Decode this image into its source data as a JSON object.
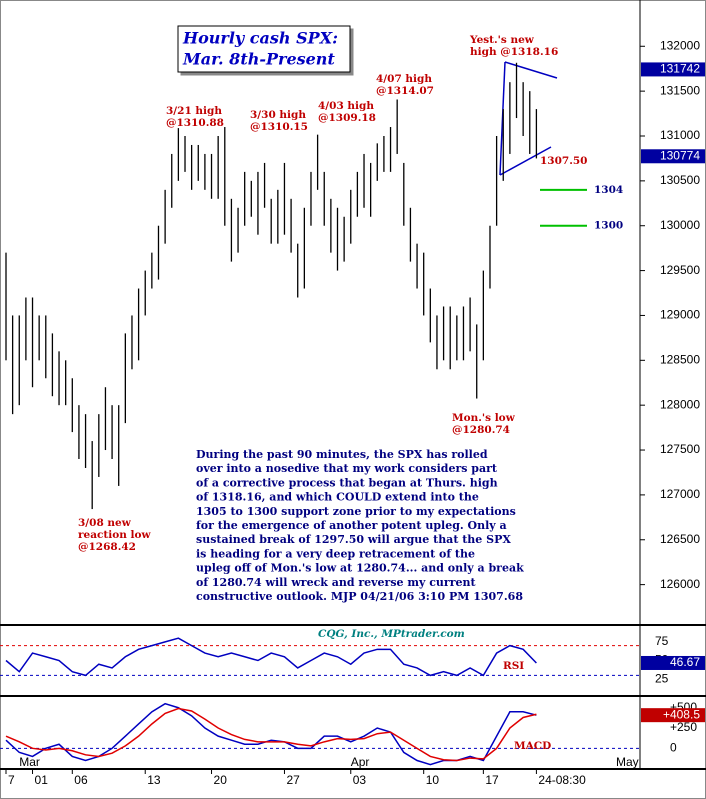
{
  "chart_data": [
    {
      "type": "range-bar",
      "title": [
        "Hourly cash SPX:",
        "Mar. 8th-Present"
      ],
      "categories": [
        "7",
        null,
        null,
        null,
        "01",
        null,
        null,
        null,
        null,
        null,
        "06",
        null,
        null,
        null,
        null,
        null,
        null,
        null,
        null,
        null,
        null,
        "13",
        null,
        null,
        null,
        null,
        null,
        null,
        null,
        null,
        null,
        "20",
        null,
        null,
        null,
        null,
        null,
        null,
        null,
        null,
        null,
        null,
        "27",
        null,
        null,
        null,
        null,
        null,
        null,
        null,
        null,
        null,
        "03",
        null,
        null,
        null,
        null,
        null,
        null,
        null,
        null,
        null,
        null,
        "10",
        null,
        null,
        null,
        null,
        null,
        null,
        null,
        null,
        "17",
        null,
        null,
        null,
        null,
        null,
        null,
        null,
        "24-08:30",
        null,
        null,
        null,
        null,
        null,
        null,
        null,
        null,
        null,
        null,
        null,
        null,
        null,
        null
      ],
      "months": [
        null,
        null,
        "Mar",
        null,
        null,
        null,
        null,
        null,
        null,
        null,
        null,
        null,
        null,
        null,
        null,
        null,
        null,
        null,
        null,
        null,
        null,
        null,
        null,
        null,
        null,
        null,
        null,
        null,
        null,
        null,
        null,
        null,
        null,
        null,
        null,
        null,
        null,
        null,
        null,
        null,
        null,
        null,
        null,
        null,
        null,
        null,
        null,
        null,
        null,
        null,
        null,
        null,
        "Apr",
        null,
        null,
        null,
        null,
        null,
        null,
        null,
        null,
        null,
        null,
        null,
        null,
        null,
        null,
        null,
        null,
        null,
        null,
        null,
        null,
        null,
        null,
        null,
        null,
        null,
        null,
        null,
        null,
        null,
        null,
        null,
        null,
        null,
        null,
        null,
        null,
        null,
        null,
        null,
        "May",
        null,
        null
      ],
      "series": [
        {
          "name": "High",
          "color": "#000000",
          "values": [
            129700,
            129000,
            129000,
            129200,
            129200,
            129000,
            129000,
            128800,
            128600,
            128500,
            128300,
            128000,
            127900,
            127600,
            127900,
            128200,
            128000,
            128000,
            128800,
            129000,
            129300,
            129500,
            129700,
            130000,
            130400,
            130800,
            131088,
            131000,
            130900,
            130900,
            130800,
            130800,
            131000,
            131100,
            130300,
            130200,
            130600,
            130500,
            130600,
            130700,
            130300,
            130400,
            130700,
            130300,
            129800,
            130200,
            130600,
            131015,
            130600,
            130300,
            130200,
            130100,
            130400,
            130600,
            130800,
            130700,
            130918,
            131000,
            131100,
            131407,
            130700,
            130200,
            129800,
            129700,
            129300,
            129000,
            129100,
            129100,
            129000,
            129100,
            129200,
            128900,
            129500,
            130000,
            131000,
            131300,
            131600,
            131816,
            131600,
            131500,
            131300,
            null,
            null,
            null,
            null,
            null,
            null,
            null,
            null,
            null,
            null,
            null,
            null,
            null,
            null
          ]
        },
        {
          "name": "Low",
          "color": "#000000",
          "values": [
            128500,
            127900,
            128000,
            128500,
            128200,
            128500,
            128300,
            128100,
            128000,
            128000,
            127700,
            127400,
            127300,
            126842,
            127200,
            127500,
            127400,
            127100,
            127800,
            128400,
            128500,
            129000,
            129300,
            129400,
            129800,
            130200,
            130500,
            130600,
            130400,
            130500,
            130400,
            130300,
            130300,
            130000,
            129600,
            129700,
            130000,
            130100,
            129900,
            130200,
            129800,
            129800,
            129900,
            129700,
            129200,
            129300,
            130000,
            130400,
            130000,
            129700,
            129500,
            129600,
            129800,
            130100,
            130200,
            130100,
            130500,
            130600,
            130600,
            130800,
            130000,
            129600,
            129300,
            129000,
            128700,
            128400,
            128500,
            128400,
            128500,
            128500,
            128600,
            128074,
            128500,
            129300,
            130000,
            130500,
            130800,
            131200,
            131000,
            130800,
            130750,
            null,
            null,
            null,
            null,
            null,
            null,
            null,
            null,
            null,
            null,
            null,
            null,
            null,
            null
          ]
        }
      ],
      "ylim": [
        125550,
        132460
      ],
      "yticks": [
        126000,
        126500,
        127000,
        127500,
        128000,
        128500,
        129000,
        129500,
        130000,
        130500,
        131000,
        131500,
        132000
      ],
      "price_tags": [
        131742,
        130774
      ],
      "support_levels": [
        {
          "value": 130400,
          "label": "1304",
          "color": "#00c000"
        },
        {
          "value": 130000,
          "label": "1300",
          "color": "#00c000"
        }
      ],
      "annotations": [
        {
          "lines": [
            "3/21 high",
            "@1310.88"
          ]
        },
        {
          "lines": [
            "3/30 high",
            "@1310.15"
          ]
        },
        {
          "lines": [
            "4/03 high",
            "@1309.18"
          ]
        },
        {
          "lines": [
            "4/07 high",
            "@1314.07"
          ]
        },
        {
          "lines": [
            "Yest.'s new",
            "high @1318.16"
          ]
        },
        {
          "lines": [
            "1307.50"
          ]
        },
        {
          "lines": [
            "Mon.'s low",
            "@1280.74"
          ]
        },
        {
          "lines": [
            "3/08 new",
            "reaction low",
            "@1268.42"
          ]
        }
      ],
      "commentary": [
        "During the past 90 minutes, the SPX has rolled",
        "over into a nosedive that my work considers part",
        "of a corrective process that began at Thurs. high",
        "of 1318.16, and which COULD extend into the",
        "1305 to 1300 support zone prior to my expectations",
        "for the emergence of another potent upleg. Only a",
        "sustained break of 1297.50 will argue that the SPX",
        "is heading for a very deep retracement of the",
        "upleg off of Mon.'s low at 1280.74... and only a break",
        "of 1280.74 will wreck and reverse my current",
        "constructive outlook.  MJP  04/21/06 3:10 PM 1307.68"
      ]
    },
    {
      "type": "line",
      "label": "RSI",
      "source": "CQG, Inc., MPtrader.com",
      "values": [
        50,
        35,
        60,
        55,
        50,
        35,
        30,
        45,
        40,
        55,
        65,
        70,
        75,
        80,
        70,
        60,
        55,
        60,
        55,
        50,
        60,
        55,
        40,
        50,
        60,
        55,
        45,
        60,
        65,
        65,
        45,
        40,
        30,
        35,
        30,
        40,
        30,
        60,
        70,
        65,
        46.67
      ],
      "color": "#0000c0",
      "ylim": [
        5,
        95
      ],
      "yticks": [
        25,
        50,
        75
      ],
      "levels": [
        70,
        30
      ],
      "last_tag": 46.67
    },
    {
      "type": "line",
      "label": "MACD",
      "series": [
        {
          "name": "MACD",
          "color": "#0000c0",
          "values": [
            100,
            -50,
            -100,
            0,
            50,
            -100,
            -150,
            -100,
            0,
            150,
            300,
            450,
            550,
            500,
            400,
            250,
            150,
            100,
            50,
            50,
            100,
            80,
            0,
            0,
            150,
            150,
            80,
            150,
            250,
            200,
            -50,
            -150,
            -200,
            -150,
            -150,
            -100,
            -150,
            150,
            450,
            450,
            408.5
          ]
        },
        {
          "name": "Signal",
          "color": "#e00000",
          "values": [
            150,
            80,
            0,
            -20,
            0,
            -30,
            -80,
            -100,
            -60,
            30,
            150,
            300,
            430,
            490,
            460,
            360,
            250,
            170,
            110,
            80,
            80,
            80,
            50,
            30,
            80,
            120,
            110,
            120,
            180,
            200,
            100,
            0,
            -100,
            -140,
            -150,
            -120,
            -130,
            0,
            250,
            380,
            420
          ]
        }
      ],
      "ylim": [
        -230,
        620
      ],
      "yticks": [
        {
          "value": 500,
          "label": "+500"
        },
        {
          "value": 250,
          "label": "+250"
        },
        0
      ],
      "last_tag": {
        "value": 408.5,
        "label": "+408.5"
      }
    }
  ]
}
